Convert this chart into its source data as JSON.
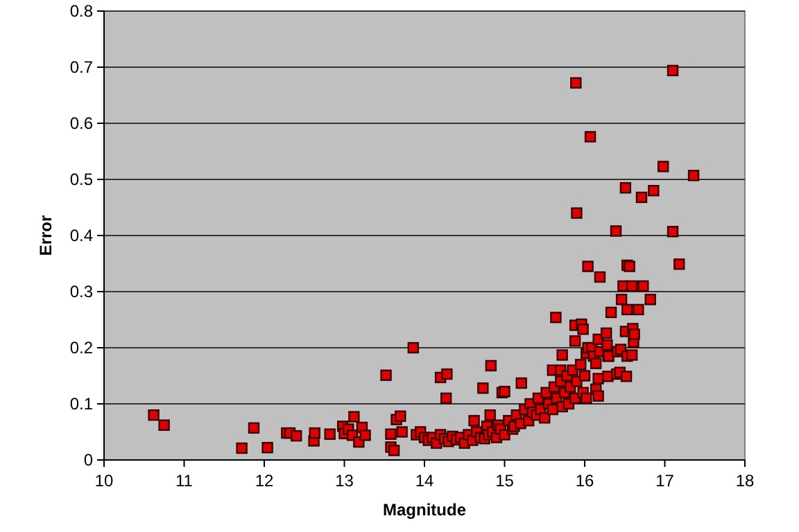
{
  "chart_data": {
    "type": "scatter",
    "xlabel": "Magnitude",
    "ylabel": "Error",
    "xlim": [
      10,
      18
    ],
    "ylim": [
      0,
      0.8
    ],
    "xticks": [
      10,
      11,
      12,
      13,
      14,
      15,
      16,
      17,
      18
    ],
    "yticks": [
      0,
      0.1,
      0.2,
      0.3,
      0.4,
      0.5,
      0.6,
      0.7,
      0.8
    ],
    "grid": "y",
    "marker": "square",
    "series": [
      {
        "color": "#e00000",
        "x": [
          10.62,
          10.75,
          11.72,
          11.87,
          12.04,
          12.28,
          12.32,
          12.4,
          12.62,
          12.63,
          12.82,
          12.98,
          13.0,
          13.05,
          13.12,
          13.1,
          13.18,
          13.22,
          13.26,
          13.52,
          13.58,
          13.58,
          13.62,
          13.65,
          13.7,
          13.72,
          13.86,
          13.9,
          13.95,
          14.0,
          14.05,
          14.1,
          14.15,
          14.2,
          14.2,
          14.25,
          14.27,
          14.28,
          14.3,
          14.35,
          14.4,
          14.45,
          14.5,
          14.55,
          14.6,
          14.62,
          14.65,
          14.7,
          14.73,
          14.75,
          14.78,
          14.8,
          14.82,
          14.83,
          14.85,
          14.9,
          14.92,
          14.95,
          14.97,
          15.0,
          15.0,
          15.05,
          15.1,
          15.12,
          15.15,
          15.2,
          15.21,
          15.25,
          15.3,
          15.32,
          15.35,
          15.4,
          15.42,
          15.45,
          15.5,
          15.52,
          15.55,
          15.6,
          15.6,
          15.62,
          15.64,
          15.65,
          15.7,
          15.7,
          15.72,
          15.72,
          15.75,
          15.78,
          15.8,
          15.82,
          15.85,
          15.88,
          15.88,
          15.88,
          15.89,
          15.9,
          15.9,
          15.95,
          15.96,
          15.98,
          15.98,
          16.0,
          16.02,
          16.02,
          16.04,
          16.04,
          16.07,
          16.09,
          16.11,
          16.14,
          16.14,
          16.17,
          16.17,
          16.17,
          16.19,
          16.19,
          16.27,
          16.28,
          16.29,
          16.29,
          16.3,
          16.33,
          16.39,
          16.4,
          16.41,
          16.44,
          16.45,
          16.46,
          16.48,
          16.51,
          16.51,
          16.52,
          16.53,
          16.53,
          16.53,
          16.56,
          16.59,
          16.59,
          16.6,
          16.61,
          16.62,
          16.67,
          16.71,
          16.73,
          16.82,
          16.86,
          16.98,
          17.1,
          17.1,
          17.18,
          17.36
        ],
        "values": [
          0.08,
          0.062,
          0.021,
          0.057,
          0.022,
          0.048,
          0.048,
          0.043,
          0.034,
          0.048,
          0.046,
          0.06,
          0.047,
          0.055,
          0.077,
          0.044,
          0.032,
          0.058,
          0.044,
          0.151,
          0.046,
          0.023,
          0.017,
          0.072,
          0.078,
          0.05,
          0.2,
          0.045,
          0.05,
          0.04,
          0.035,
          0.04,
          0.03,
          0.045,
          0.147,
          0.038,
          0.11,
          0.153,
          0.033,
          0.042,
          0.036,
          0.04,
          0.03,
          0.045,
          0.035,
          0.07,
          0.05,
          0.04,
          0.128,
          0.038,
          0.06,
          0.045,
          0.08,
          0.168,
          0.05,
          0.04,
          0.062,
          0.055,
          0.12,
          0.045,
          0.122,
          0.07,
          0.055,
          0.06,
          0.08,
          0.065,
          0.137,
          0.09,
          0.07,
          0.1,
          0.085,
          0.08,
          0.11,
          0.09,
          0.075,
          0.12,
          0.1,
          0.09,
          0.16,
          0.13,
          0.254,
          0.11,
          0.14,
          0.16,
          0.095,
          0.187,
          0.12,
          0.15,
          0.1,
          0.13,
          0.16,
          0.11,
          0.212,
          0.24,
          0.672,
          0.14,
          0.44,
          0.17,
          0.242,
          0.12,
          0.233,
          0.15,
          0.19,
          0.11,
          0.345,
          0.2,
          0.576,
          0.2,
          0.185,
          0.172,
          0.126,
          0.215,
          0.145,
          0.114,
          0.193,
          0.326,
          0.226,
          0.205,
          0.185,
          0.149,
          0.185,
          0.263,
          0.408,
          0.153,
          0.193,
          0.156,
          0.197,
          0.286,
          0.31,
          0.485,
          0.229,
          0.149,
          0.185,
          0.268,
          0.347,
          0.345,
          0.31,
          0.187,
          0.234,
          0.21,
          0.224,
          0.268,
          0.468,
          0.31,
          0.286,
          0.48,
          0.523,
          0.694,
          0.407,
          0.349,
          0.507
        ]
      }
    ]
  }
}
